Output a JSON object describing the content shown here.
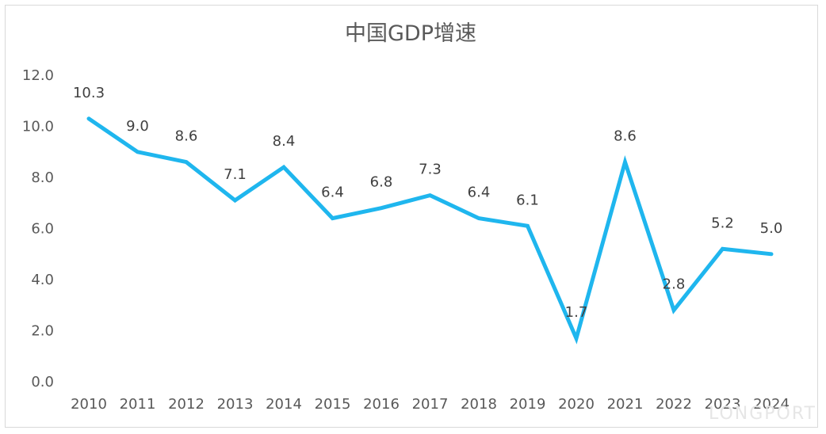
{
  "chart_data": {
    "type": "line",
    "title": "中国GDP增速",
    "categories": [
      "2010",
      "2011",
      "2012",
      "2013",
      "2014",
      "2015",
      "2016",
      "2017",
      "2018",
      "2019",
      "2020",
      "2021",
      "2022",
      "2023",
      "2024"
    ],
    "series": [
      {
        "values": [
          10.3,
          9.0,
          8.6,
          7.1,
          8.4,
          6.4,
          6.8,
          7.3,
          6.4,
          6.1,
          1.7,
          8.6,
          2.8,
          5.2,
          5.0
        ],
        "labels": [
          "10.3",
          "9.0",
          "8.6",
          "7.1",
          "8.4",
          "6.4",
          "6.8",
          "7.3",
          "6.4",
          "6.1",
          "1.7",
          "8.6",
          "2.8",
          "5.2",
          "5.0"
        ]
      }
    ],
    "ylim": [
      0,
      12
    ],
    "yticks": [
      "0.0",
      "2.0",
      "4.0",
      "6.0",
      "8.0",
      "10.0",
      "12.0"
    ],
    "grid": false,
    "legend": "none",
    "line_color": "#1fb6ee",
    "watermark": "LONGPORT"
  }
}
